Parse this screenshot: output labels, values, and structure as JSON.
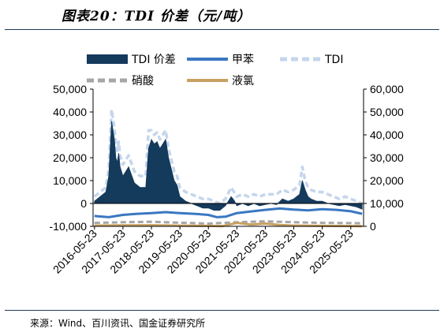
{
  "page": {
    "title": "图表20：TDI 价差（元/吨）",
    "source": "来源：Wind、百川资讯、国金证券研究所"
  },
  "chart_data": {
    "type": "area",
    "title": "图表20：TDI 价差（元/吨）",
    "legend": [
      "TDI 价差",
      "甲苯",
      "TDI",
      "硝酸",
      "液氯"
    ],
    "legend_position": "top",
    "x_ticks": [
      "2016-05-23",
      "2017-05-23",
      "2018-05-23",
      "2019-05-23",
      "2020-05-23",
      "2021-05-23",
      "2022-05-23",
      "2023-05-23",
      "2024-05-23",
      "2025-05-23"
    ],
    "y_left_ticks": [
      "50,000",
      "40,000",
      "30,000",
      "20,000",
      "10,000",
      "0",
      "-10,000"
    ],
    "y_right_ticks": [
      "60,000",
      "50,000",
      "40,000",
      "30,000",
      "20,000",
      "10,000",
      "0"
    ],
    "y_left_range": [
      -10000,
      50000
    ],
    "y_right_range": [
      0,
      60000
    ],
    "grid": false,
    "series": [
      {
        "name": "TDI 价差",
        "axis": "left",
        "style": "area",
        "color": "#143a5c",
        "x": [
          2016.0,
          2016.2,
          2016.4,
          2016.5,
          2016.6,
          2016.7,
          2016.75,
          2016.8,
          2016.85,
          2016.9,
          2017.0,
          2017.2,
          2017.4,
          2017.6,
          2017.8,
          2017.9,
          2018.0,
          2018.1,
          2018.2,
          2018.3,
          2018.5,
          2018.6,
          2018.7,
          2018.8,
          2018.9,
          2019.0,
          2019.2,
          2019.4,
          2019.6,
          2019.8,
          2020.0,
          2020.2,
          2020.4,
          2020.6,
          2020.8,
          2020.9,
          2021.0,
          2021.2,
          2021.4,
          2021.6,
          2021.8,
          2022.0,
          2022.2,
          2022.4,
          2022.6,
          2022.8,
          2023.0,
          2023.2,
          2023.3,
          2023.4,
          2023.5,
          2023.6,
          2023.8,
          2024.0,
          2024.2,
          2024.4,
          2024.6,
          2024.8,
          2025.0,
          2025.2,
          2025.4
        ],
        "values": [
          1000,
          3000,
          5000,
          12000,
          36000,
          28000,
          20000,
          18000,
          22000,
          16000,
          12000,
          16000,
          9000,
          7000,
          7000,
          24000,
          28000,
          26000,
          27000,
          24000,
          28000,
          20000,
          15000,
          10000,
          8000,
          3000,
          1000,
          0,
          -1000,
          -2000,
          -2000,
          -3000,
          -3000,
          -1000,
          3000,
          1500,
          -1000,
          0,
          -1000,
          0,
          -1000,
          -500,
          0,
          -500,
          2000,
          1000,
          2000,
          4000,
          10000,
          6000,
          3000,
          2000,
          1000,
          1000,
          0,
          -500,
          -1000,
          -500,
          -1000,
          -1500,
          -2500
        ]
      },
      {
        "name": "甲苯",
        "axis": "right",
        "style": "line",
        "color": "#3a77c2",
        "x": [
          2016.0,
          2016.5,
          2017.0,
          2017.5,
          2018.0,
          2018.5,
          2019.0,
          2019.5,
          2020.0,
          2020.3,
          2020.6,
          2021.0,
          2021.5,
          2022.0,
          2022.5,
          2023.0,
          2023.5,
          2024.0,
          2024.5,
          2025.0,
          2025.4
        ],
        "values": [
          4500,
          4000,
          5000,
          5500,
          5800,
          6200,
          5800,
          5500,
          5000,
          4000,
          4200,
          5800,
          6500,
          7200,
          7800,
          7300,
          7000,
          7500,
          7200,
          6600,
          5500
        ]
      },
      {
        "name": "TDI",
        "axis": "right",
        "style": "dash",
        "color": "#c4d6ec",
        "x": [
          2016.0,
          2016.2,
          2016.4,
          2016.5,
          2016.6,
          2016.7,
          2016.75,
          2016.8,
          2016.85,
          2016.9,
          2017.0,
          2017.2,
          2017.4,
          2017.6,
          2017.8,
          2017.9,
          2018.0,
          2018.1,
          2018.2,
          2018.3,
          2018.5,
          2018.6,
          2018.7,
          2018.8,
          2018.9,
          2019.0,
          2019.2,
          2019.4,
          2019.6,
          2019.8,
          2020.0,
          2020.2,
          2020.4,
          2020.6,
          2020.8,
          2020.9,
          2021.0,
          2021.2,
          2021.4,
          2021.6,
          2021.8,
          2022.0,
          2022.2,
          2022.4,
          2022.6,
          2022.8,
          2023.0,
          2023.2,
          2023.3,
          2023.4,
          2023.5,
          2023.6,
          2023.8,
          2024.0,
          2024.2,
          2024.4,
          2024.6,
          2024.8,
          2025.0,
          2025.2,
          2025.4
        ],
        "values": [
          13000,
          15000,
          17000,
          25000,
          51000,
          43000,
          35000,
          33000,
          37000,
          31000,
          27000,
          31000,
          24000,
          22000,
          22000,
          42000,
          42000,
          40000,
          41000,
          38000,
          42000,
          34000,
          29000,
          24000,
          22000,
          17000,
          15000,
          14000,
          13000,
          12000,
          12000,
          11000,
          10000,
          12000,
          17000,
          15000,
          13000,
          14000,
          13000,
          14000,
          13000,
          14000,
          14000,
          14000,
          16000,
          15000,
          16000,
          18000,
          26000,
          20000,
          17000,
          16000,
          15000,
          15000,
          14000,
          13000,
          12000,
          13000,
          12000,
          11000,
          10000
        ]
      },
      {
        "name": "硝酸",
        "axis": "right",
        "style": "dash",
        "color": "#a6a6a6",
        "x": [
          2016.0,
          2017.0,
          2018.0,
          2019.0,
          2020.0,
          2021.0,
          2022.0,
          2023.0,
          2024.0,
          2025.0,
          2025.4
        ],
        "values": [
          1500,
          1800,
          2000,
          1600,
          1200,
          1800,
          2200,
          1800,
          1500,
          1400,
          1300
        ]
      },
      {
        "name": "液氯",
        "axis": "right",
        "style": "line",
        "color": "#c8a060",
        "x": [
          2016.0,
          2017.0,
          2018.0,
          2019.0,
          2020.0,
          2020.5,
          2021.0,
          2021.5,
          2022.0,
          2022.5,
          2023.0,
          2024.0,
          2025.0,
          2025.4
        ],
        "values": [
          300,
          400,
          500,
          300,
          200,
          100,
          1500,
          800,
          1200,
          600,
          300,
          200,
          150,
          100
        ]
      }
    ]
  }
}
